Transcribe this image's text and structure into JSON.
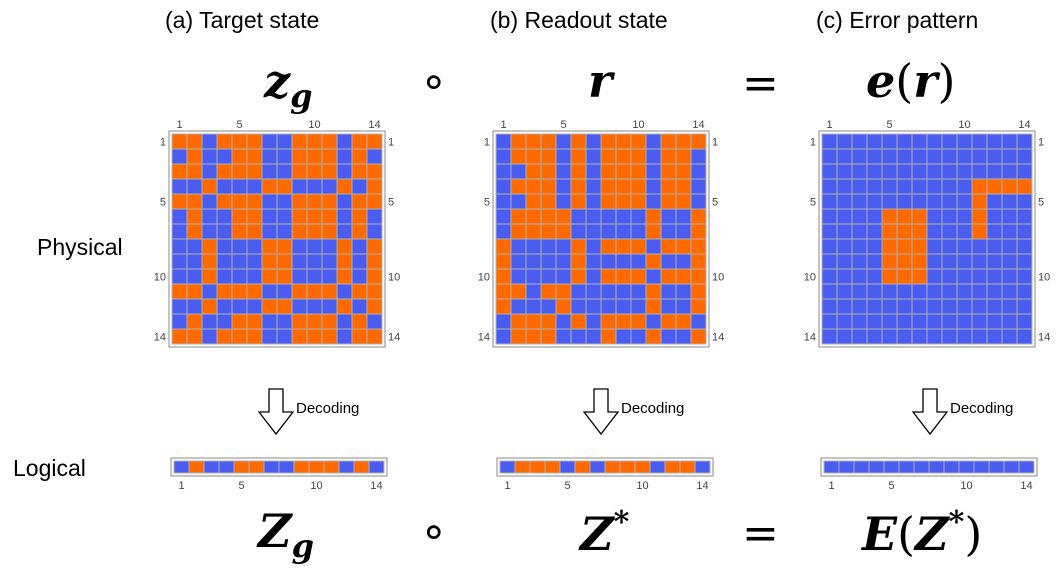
{
  "row_labels": {
    "physical": "Physical",
    "logical": "Logical"
  },
  "decoding_label": "Decoding",
  "colors": {
    "orange": "#ff6a00",
    "blue": "#4a5df0",
    "grid": "#b0b0b0",
    "frame": "#8a8a8a",
    "tick_text": "#444444"
  },
  "tick_labels": [
    "1",
    "5",
    "10",
    "14"
  ],
  "equation_top": {
    "operator_compose": "∘",
    "operator_equals": "="
  },
  "equation_bottom": {
    "operator_compose": "∘",
    "operator_equals": "="
  },
  "panels": [
    {
      "title": "(a) Target state",
      "top_symbol": "z",
      "top_sub": "g",
      "bottom_symbol": "Z",
      "bottom_sub": "g",
      "logical_row": "01001100111010",
      "matrix": [
        "11011100111011",
        "01001100111010",
        "11011100111011",
        "00100011000101",
        "11011100111011",
        "01001100111010",
        "01001100111010",
        "00100011000101",
        "00100011000101",
        "00100011000101",
        "11011100111011",
        "00100011000101",
        "01001100111010",
        "11011100111011"
      ]
    },
    {
      "title": "(b) Readout state",
      "top_symbol": "r",
      "bottom_symbol": "Z",
      "bottom_sup": "*",
      "logical_row": "01110101110110",
      "matrix": [
        "01110101110111",
        "01110101110110",
        "00110101110110",
        "01110101110110",
        "00110101110110",
        "01111000001001",
        "01111000001001",
        "10000101110111",
        "10000100001001",
        "10000101110111",
        "11011000001001",
        "10001000001001",
        "01110101110110",
        "01110001001001"
      ]
    },
    {
      "title": "(c) Error pattern",
      "top_symbol": "e",
      "top_arg": "r",
      "bottom_symbol": "E",
      "bottom_arg": "Z",
      "bottom_arg_sup": "*",
      "logical_row": "00000000000000",
      "matrix": [
        "00000000000000",
        "00000000000000",
        "00000000000000",
        "00000000001111",
        "00000000001000",
        "00001110001000",
        "00001110001000",
        "00001110000000",
        "00001110000000",
        "00001110000000",
        "00000000000000",
        "00000000000000",
        "00000000000000",
        "00000000000000"
      ]
    }
  ]
}
